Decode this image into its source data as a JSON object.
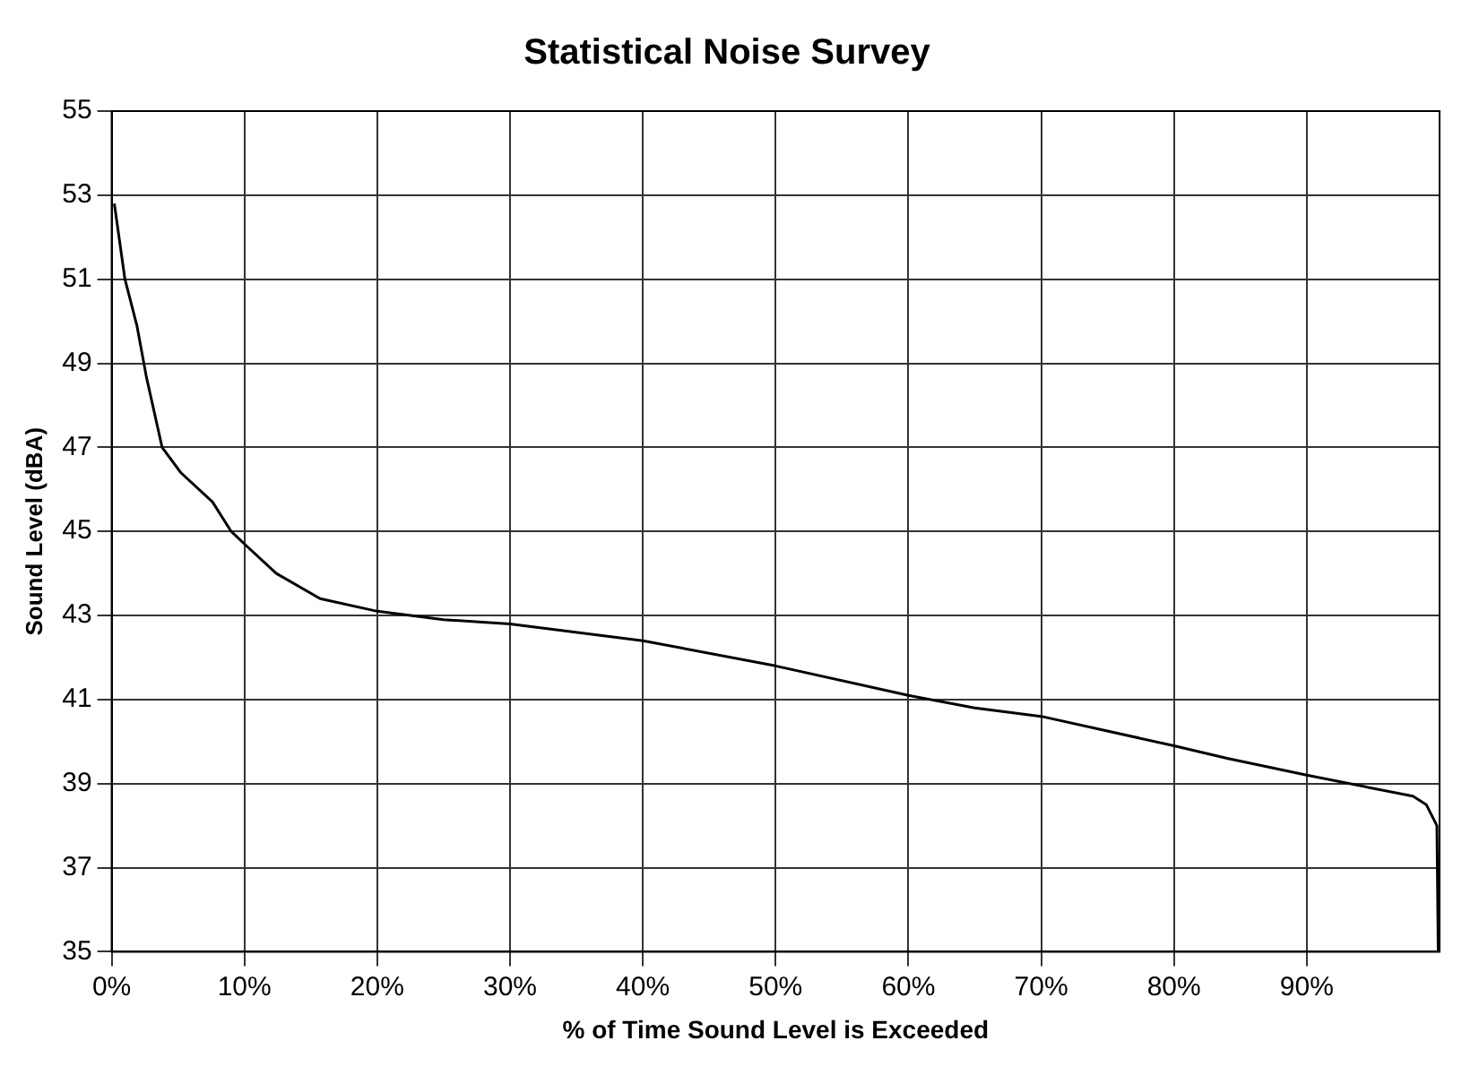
{
  "chart_data": {
    "type": "line",
    "title": "Statistical Noise Survey",
    "xlabel": "% of Time Sound Level is Exceeded",
    "ylabel": "Sound Level (dBA)",
    "x": [
      0.2,
      1,
      1.9,
      2.6,
      3.8,
      5.2,
      7.6,
      9,
      10,
      12.4,
      15.7,
      20,
      25,
      30,
      40,
      50,
      60,
      65,
      70,
      80,
      84,
      90,
      98,
      99,
      99.8,
      99.9
    ],
    "series": [
      {
        "color": "#000000",
        "values": [
          52.8,
          51,
          49.9,
          48.7,
          47,
          46.4,
          45.7,
          45,
          44.7,
          44,
          43.4,
          43.1,
          42.9,
          42.8,
          42.4,
          41.8,
          41.1,
          40.8,
          40.6,
          39.9,
          39.6,
          39.2,
          38.7,
          38.5,
          38,
          35
        ]
      }
    ],
    "xlim": [
      0,
      100
    ],
    "xticks": [
      {
        "value": 0,
        "label": "0%"
      },
      {
        "value": 10,
        "label": "10%"
      },
      {
        "value": 20,
        "label": "20%"
      },
      {
        "value": 30,
        "label": "30%"
      },
      {
        "value": 40,
        "label": "40%"
      },
      {
        "value": 50,
        "label": "50%"
      },
      {
        "value": 60,
        "label": "60%"
      },
      {
        "value": 70,
        "label": "70%"
      },
      {
        "value": 80,
        "label": "80%"
      },
      {
        "value": 90,
        "label": "90%"
      }
    ],
    "ylim": [
      35,
      55
    ],
    "yticks": [
      35,
      37,
      39,
      41,
      43,
      45,
      47,
      49,
      51,
      53,
      55
    ],
    "grid": true,
    "legend": false,
    "marker": "none",
    "line_style": "solid"
  }
}
